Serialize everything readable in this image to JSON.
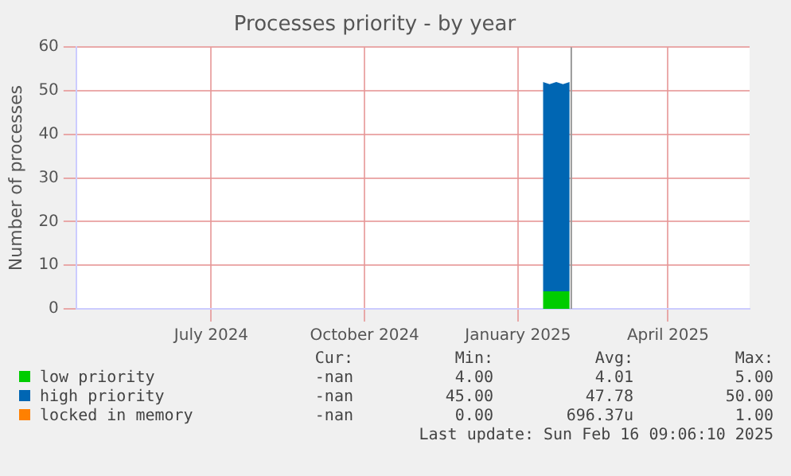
{
  "chart_data": {
    "type": "area",
    "title": "Processes priority - by year",
    "ylabel": "Number of processes",
    "stacked": true,
    "x": [
      "2025-01-16",
      "2025-01-20",
      "2025-01-24",
      "2025-01-28",
      "2025-02-01"
    ],
    "xlim": [
      "2024-04-11",
      "2025-05-20"
    ],
    "xticks": [
      {
        "value": "2024-07-01",
        "label": "July 2024"
      },
      {
        "value": "2024-10-01",
        "label": "October 2024"
      },
      {
        "value": "2025-01-01",
        "label": "January 2025"
      },
      {
        "value": "2025-04-01",
        "label": "April 2025"
      }
    ],
    "ylim": [
      0,
      60
    ],
    "yticks": [
      0,
      10,
      20,
      30,
      40,
      50,
      60
    ],
    "grid": true,
    "legend": "bottom",
    "marker": "none",
    "series": [
      {
        "name": "low priority",
        "color": "#00cc00",
        "values": [
          4,
          4,
          4,
          4,
          4
        ]
      },
      {
        "name": "high priority",
        "color": "#0066b3",
        "values": [
          48,
          47.5,
          48,
          47.5,
          48
        ]
      },
      {
        "name": "locked in memory",
        "color": "#ff8000",
        "values": [
          null,
          null,
          null,
          null,
          null
        ]
      }
    ],
    "ref_lines": [
      {
        "axis": "x",
        "value": "2025-02-02",
        "color": "#999999"
      }
    ],
    "annotations": [
      "Cur:",
      "Min:",
      "Avg:",
      "Max:",
      "-nan",
      "4.00",
      "4.01",
      "5.00",
      "-nan",
      "45.00",
      "47.78",
      "50.00",
      "-nan",
      "0.00",
      "696.37u",
      "1.00",
      "Last update: Sun Feb 16 09:06:10 2025"
    ]
  }
}
